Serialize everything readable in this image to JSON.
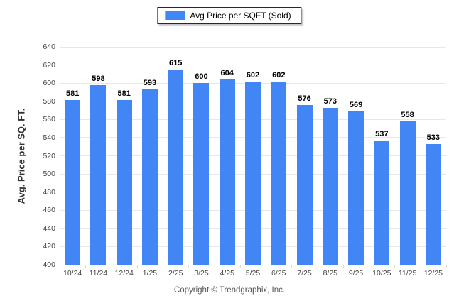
{
  "legend": {
    "label": "Avg Price per SQFT (Sold)"
  },
  "footer": {
    "text": "Copyright © Trendgraphix, Inc."
  },
  "colors": {
    "bar": "#4285f4",
    "grid": "#e8e8ec",
    "tick_label": "#444444",
    "value_label": "#000000",
    "legend_border": "#1b2a41",
    "background": "#ffffff"
  },
  "chart_data": {
    "type": "bar",
    "title": "",
    "xlabel": "",
    "ylabel": "Avg. Price per SQ. FT.",
    "categories": [
      "10/24",
      "11/24",
      "12/24",
      "1/25",
      "2/25",
      "3/25",
      "4/25",
      "5/25",
      "6/25",
      "7/25",
      "8/25",
      "9/25",
      "10/25",
      "11/25",
      "12/25"
    ],
    "values": [
      581,
      598,
      581,
      593,
      615,
      600,
      604,
      602,
      602,
      576,
      573,
      569,
      537,
      558,
      533
    ],
    "series": [
      {
        "name": "Avg Price per SQFT (Sold)",
        "values": [
          581,
          598,
          581,
          593,
          615,
          600,
          604,
          602,
          602,
          576,
          573,
          569,
          537,
          558,
          533
        ]
      }
    ],
    "ylim": [
      400,
      640
    ],
    "ytick_step": 20,
    "grid": true,
    "legend_position": "top-center",
    "value_labels_shown": true
  }
}
